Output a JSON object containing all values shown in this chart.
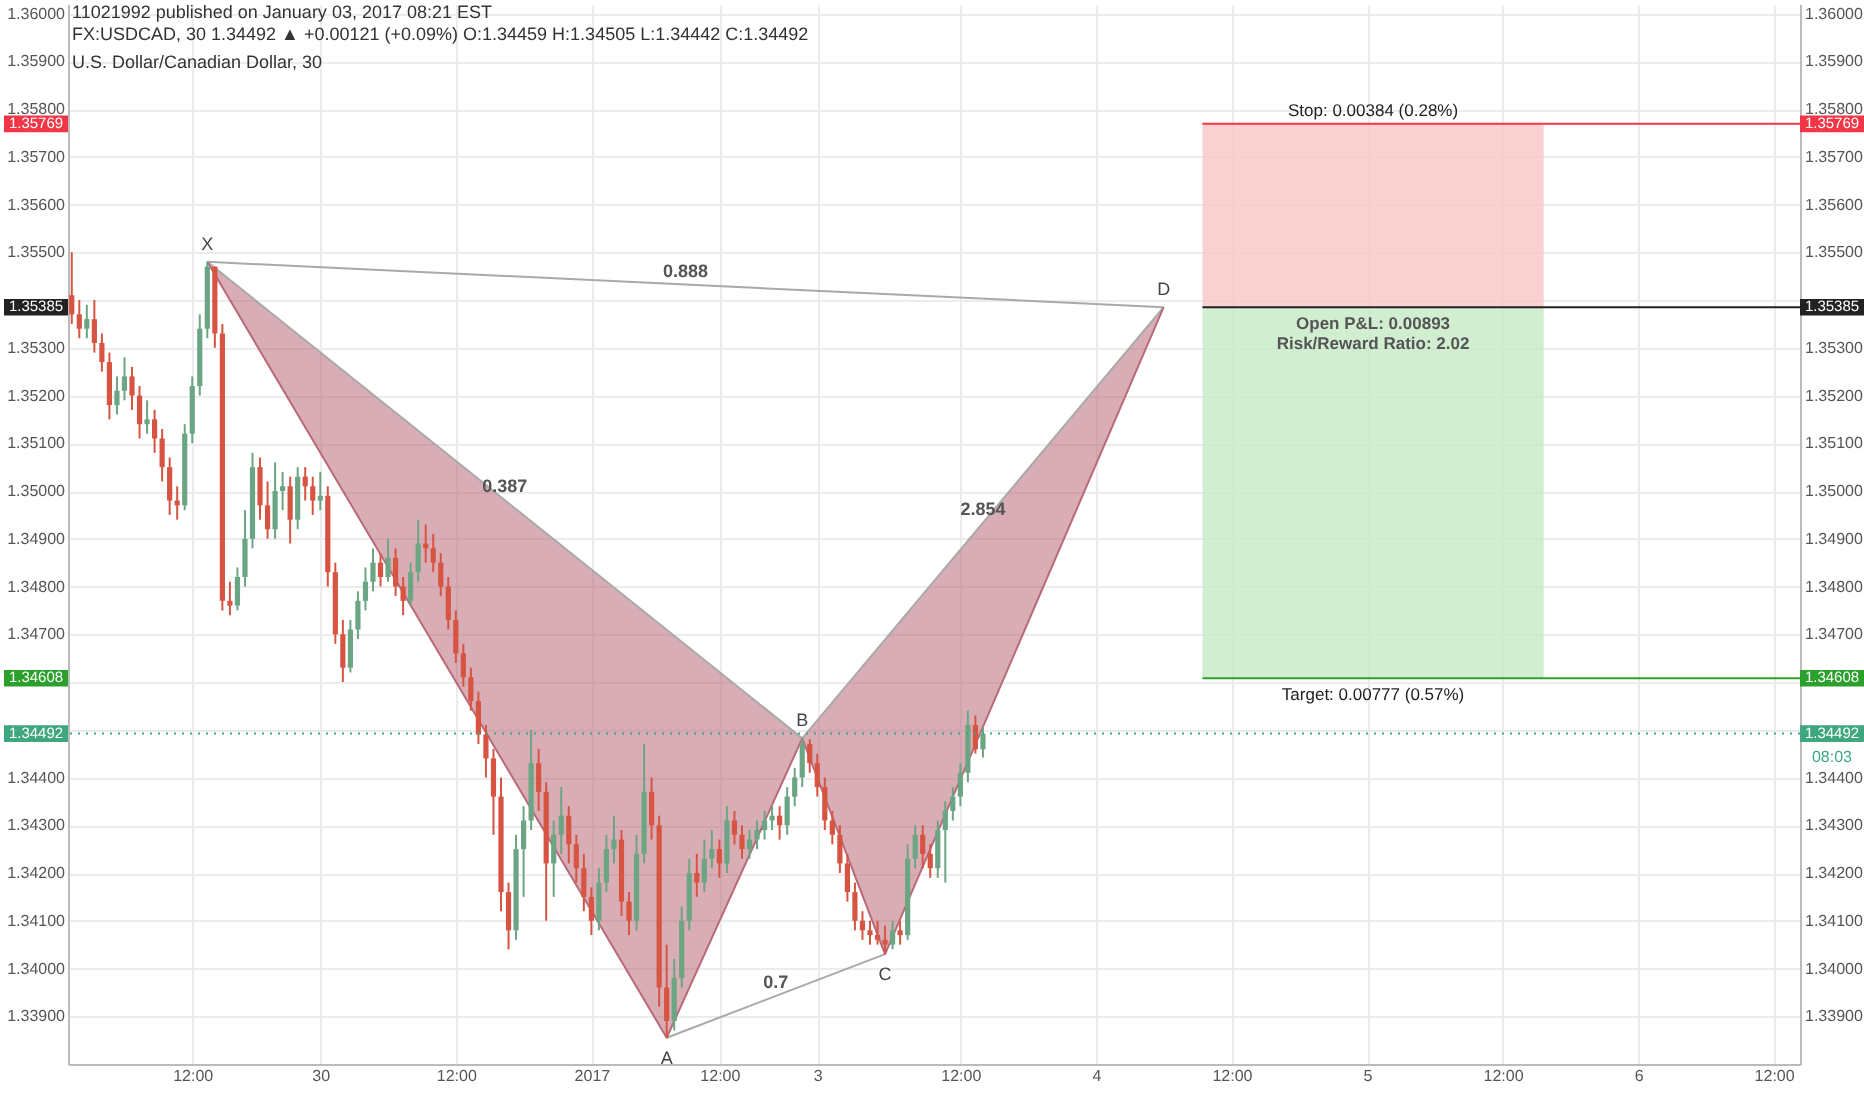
{
  "chart_data": {
    "type": "candlestick",
    "title": "U.S. Dollar/Canadian Dollar, 30",
    "annotations": [
      "11021992 published on January 03, 2017 08:21 EST",
      "FX:USDCAD, 30  1.34492 ▲ +0.00121 (+0.09%)  O:1.34459  H:1.34505  L:1.34442  C:1.34492",
      "08:03",
      {
        "text": "X",
        "y": 1.3548
      },
      {
        "text": "A",
        "y": 1.33855
      },
      {
        "text": "B",
        "y": 1.34482
      },
      {
        "text": "C",
        "y": 1.3403
      },
      {
        "text": "D",
        "y": 1.35385
      },
      "0.888",
      "0.387",
      "2.854",
      "0.7",
      "Open P&L: 0.00893",
      "Risk/Reward Ratio: 2.02"
    ],
    "categories": [
      null,
      null,
      null,
      null,
      null,
      null,
      null,
      null,
      null,
      null,
      null,
      null,
      null,
      null,
      null,
      null,
      "12:00",
      null,
      null,
      null,
      null,
      null,
      null,
      null,
      null,
      null,
      null,
      null,
      null,
      null,
      null,
      null,
      null,
      "30",
      null,
      null,
      null,
      null,
      null,
      null,
      null,
      null,
      null,
      null,
      null,
      null,
      null,
      null,
      null,
      null,
      null,
      "12:00",
      null,
      null,
      null,
      null,
      null,
      null,
      null,
      null,
      null,
      null,
      null,
      null,
      null,
      null,
      null,
      null,
      null,
      "2017",
      null,
      null,
      null,
      null,
      null,
      null,
      null,
      null,
      null,
      null,
      null,
      null,
      null,
      null,
      null,
      null,
      "12:00",
      null,
      null,
      null,
      null,
      null,
      null,
      null,
      null,
      null,
      null,
      null,
      null,
      "3",
      null,
      null,
      null,
      null,
      null,
      null,
      null,
      null,
      null,
      null,
      null,
      null,
      null,
      null,
      null,
      null,
      null,
      null,
      "12:00",
      null,
      null,
      null,
      null,
      null,
      null,
      null,
      null,
      null,
      null,
      null,
      null,
      null,
      null,
      null,
      null,
      null,
      "4",
      null,
      null,
      null,
      null,
      null,
      null,
      null,
      null,
      null,
      null,
      null,
      null,
      null,
      null,
      null,
      null,
      null,
      "12:00",
      null,
      null,
      null,
      null,
      null,
      null,
      null,
      null,
      null,
      null,
      null,
      null,
      null,
      null,
      null,
      null,
      null,
      "5",
      null,
      null,
      null,
      null,
      null,
      null,
      null,
      null,
      null,
      null,
      null,
      null,
      null,
      null,
      null,
      null,
      null,
      "12:00",
      null,
      null,
      null,
      null,
      null,
      null,
      null,
      null,
      null,
      null,
      null,
      null,
      null,
      null,
      null,
      null,
      null,
      "6",
      null,
      null,
      null,
      null,
      null,
      null,
      null,
      null,
      null,
      null,
      null,
      null,
      null,
      null,
      null,
      null,
      null,
      "12:00",
      null,
      null,
      null
    ],
    "ohlc": [
      [
        1.3541,
        1.355,
        1.3535,
        1.3537
      ],
      [
        1.3537,
        1.354,
        1.3532,
        1.3534
      ],
      [
        1.3534,
        1.3539,
        1.3532,
        1.3536
      ],
      [
        1.3536,
        1.354,
        1.3529,
        1.3531
      ],
      [
        1.3531,
        1.3533,
        1.3525,
        1.3527
      ],
      [
        1.3527,
        1.3529,
        1.3515,
        1.3518
      ],
      [
        1.3518,
        1.3524,
        1.3516,
        1.3521
      ],
      [
        1.3521,
        1.3528,
        1.3519,
        1.3524
      ],
      [
        1.3524,
        1.3526,
        1.3517,
        1.352
      ],
      [
        1.352,
        1.3522,
        1.3511,
        1.3514
      ],
      [
        1.3514,
        1.3519,
        1.3512,
        1.3515
      ],
      [
        1.3515,
        1.3517,
        1.3508,
        1.3511
      ],
      [
        1.3511,
        1.3513,
        1.3502,
        1.3505
      ],
      [
        1.3505,
        1.3507,
        1.3495,
        1.3498
      ],
      [
        1.3498,
        1.3501,
        1.3494,
        1.3497
      ],
      [
        1.3497,
        1.3514,
        1.3496,
        1.3512
      ],
      [
        1.3512,
        1.3524,
        1.351,
        1.3522
      ],
      [
        1.3522,
        1.3537,
        1.352,
        1.3534
      ],
      [
        1.3534,
        1.3548,
        1.3532,
        1.3547
      ],
      [
        1.3547,
        1.3547,
        1.353,
        1.3533
      ],
      [
        1.3533,
        1.3535,
        1.3475,
        1.3477
      ],
      [
        1.3477,
        1.3481,
        1.3474,
        1.3476
      ],
      [
        1.3476,
        1.3484,
        1.3475,
        1.3482
      ],
      [
        1.3482,
        1.3496,
        1.348,
        1.349
      ],
      [
        1.349,
        1.3508,
        1.3488,
        1.3505
      ],
      [
        1.3505,
        1.3507,
        1.3494,
        1.3497
      ],
      [
        1.3497,
        1.3502,
        1.349,
        1.3492
      ],
      [
        1.3492,
        1.3506,
        1.349,
        1.35
      ],
      [
        1.35,
        1.3504,
        1.3496,
        1.3501
      ],
      [
        1.3501,
        1.3503,
        1.3489,
        1.3494
      ],
      [
        1.3494,
        1.3505,
        1.3492,
        1.3503
      ],
      [
        1.3503,
        1.3505,
        1.3498,
        1.3501
      ],
      [
        1.3501,
        1.3503,
        1.3495,
        1.3498
      ],
      [
        1.3498,
        1.3504,
        1.3496,
        1.3499
      ],
      [
        1.3499,
        1.3501,
        1.348,
        1.3483
      ],
      [
        1.3483,
        1.3485,
        1.3468,
        1.347
      ],
      [
        1.347,
        1.3473,
        1.346,
        1.3463
      ],
      [
        1.3463,
        1.3473,
        1.3462,
        1.3471
      ],
      [
        1.3471,
        1.3479,
        1.3469,
        1.3477
      ],
      [
        1.3477,
        1.3484,
        1.3475,
        1.3481
      ],
      [
        1.3481,
        1.3488,
        1.3479,
        1.3485
      ],
      [
        1.3485,
        1.3487,
        1.348,
        1.3482
      ],
      [
        1.3482,
        1.349,
        1.3481,
        1.3486
      ],
      [
        1.3486,
        1.3488,
        1.3478,
        1.348
      ],
      [
        1.348,
        1.3482,
        1.3474,
        1.3477
      ],
      [
        1.3477,
        1.3485,
        1.3476,
        1.3483
      ],
      [
        1.3483,
        1.3494,
        1.3481,
        1.3489
      ],
      [
        1.3489,
        1.3493,
        1.3485,
        1.3488
      ],
      [
        1.3488,
        1.3491,
        1.3483,
        1.3485
      ],
      [
        1.3485,
        1.3487,
        1.3478,
        1.348
      ],
      [
        1.348,
        1.3482,
        1.3471,
        1.3473
      ],
      [
        1.3473,
        1.3475,
        1.3464,
        1.3466
      ],
      [
        1.3466,
        1.3468,
        1.3459,
        1.3461
      ],
      [
        1.3461,
        1.3463,
        1.3454,
        1.3456
      ],
      [
        1.3456,
        1.3458,
        1.3447,
        1.3449
      ],
      [
        1.3449,
        1.3451,
        1.344,
        1.3444
      ],
      [
        1.3444,
        1.3446,
        1.3428,
        1.3436
      ],
      [
        1.3436,
        1.344,
        1.3412,
        1.3416
      ],
      [
        1.3416,
        1.3418,
        1.3404,
        1.3408
      ],
      [
        1.3408,
        1.3428,
        1.3406,
        1.3425
      ],
      [
        1.3425,
        1.3434,
        1.3415,
        1.3431
      ],
      [
        1.3431,
        1.345,
        1.3429,
        1.3443
      ],
      [
        1.3443,
        1.3446,
        1.3433,
        1.3437
      ],
      [
        1.3437,
        1.3439,
        1.341,
        1.3422
      ],
      [
        1.3422,
        1.3431,
        1.3415,
        1.3428
      ],
      [
        1.3428,
        1.3438,
        1.3424,
        1.3432
      ],
      [
        1.3432,
        1.3434,
        1.3422,
        1.3426
      ],
      [
        1.3426,
        1.3428,
        1.3418,
        1.3421
      ],
      [
        1.3421,
        1.3424,
        1.3412,
        1.3415
      ],
      [
        1.3415,
        1.3417,
        1.3407,
        1.341
      ],
      [
        1.341,
        1.3421,
        1.3408,
        1.3418
      ],
      [
        1.3418,
        1.3428,
        1.3416,
        1.3425
      ],
      [
        1.3425,
        1.3432,
        1.3422,
        1.3427
      ],
      [
        1.3427,
        1.3429,
        1.3411,
        1.3414
      ],
      [
        1.3414,
        1.3416,
        1.3407,
        1.341
      ],
      [
        1.341,
        1.3428,
        1.3408,
        1.3424
      ],
      [
        1.3424,
        1.3447,
        1.3422,
        1.3437
      ],
      [
        1.3437,
        1.344,
        1.3427,
        1.343
      ],
      [
        1.343,
        1.3432,
        1.3392,
        1.3396
      ],
      [
        1.3396,
        1.3405,
        1.33855,
        1.3389
      ],
      [
        1.3389,
        1.3402,
        1.3387,
        1.3398
      ],
      [
        1.3398,
        1.3413,
        1.3396,
        1.341
      ],
      [
        1.341,
        1.3423,
        1.3408,
        1.342
      ],
      [
        1.342,
        1.3424,
        1.3415,
        1.3418
      ],
      [
        1.3418,
        1.3427,
        1.3416,
        1.3423
      ],
      [
        1.3423,
        1.3429,
        1.3421,
        1.3425
      ],
      [
        1.3425,
        1.3427,
        1.3419,
        1.3422
      ],
      [
        1.3422,
        1.3434,
        1.342,
        1.3431
      ],
      [
        1.3431,
        1.3433,
        1.3426,
        1.3428
      ],
      [
        1.3428,
        1.343,
        1.3423,
        1.3425
      ],
      [
        1.3425,
        1.3429,
        1.3423,
        1.3427
      ],
      [
        1.3427,
        1.3431,
        1.3425,
        1.3429
      ],
      [
        1.3429,
        1.3433,
        1.3427,
        1.3431
      ],
      [
        1.3431,
        1.3434,
        1.3429,
        1.3432
      ],
      [
        1.3432,
        1.3434,
        1.3427,
        1.343
      ],
      [
        1.343,
        1.3438,
        1.3428,
        1.3436
      ],
      [
        1.3436,
        1.3442,
        1.3434,
        1.344
      ],
      [
        1.344,
        1.34482,
        1.3438,
        1.3447
      ],
      [
        1.3447,
        1.3448,
        1.3441,
        1.3443
      ],
      [
        1.3443,
        1.3445,
        1.3436,
        1.3438
      ],
      [
        1.3438,
        1.344,
        1.3429,
        1.3431
      ],
      [
        1.3431,
        1.3433,
        1.3426,
        1.3428
      ],
      [
        1.3428,
        1.343,
        1.342,
        1.3422
      ],
      [
        1.3422,
        1.3424,
        1.3414,
        1.3416
      ],
      [
        1.3416,
        1.3418,
        1.3408,
        1.341
      ],
      [
        1.341,
        1.3412,
        1.3406,
        1.3408
      ],
      [
        1.3408,
        1.341,
        1.3405,
        1.3407
      ],
      [
        1.3407,
        1.341,
        1.3405,
        1.3406
      ],
      [
        1.3406,
        1.3409,
        1.3403,
        1.3405
      ],
      [
        1.3405,
        1.341,
        1.3404,
        1.3408
      ],
      [
        1.3408,
        1.341,
        1.3405,
        1.3407
      ],
      [
        1.3407,
        1.3426,
        1.3406,
        1.3423
      ],
      [
        1.3423,
        1.343,
        1.3421,
        1.3428
      ],
      [
        1.3428,
        1.343,
        1.3421,
        1.3424
      ],
      [
        1.3424,
        1.3426,
        1.3419,
        1.3421
      ],
      [
        1.3421,
        1.3431,
        1.3419,
        1.3429
      ],
      [
        1.3429,
        1.3435,
        1.3418,
        1.3433
      ],
      [
        1.3433,
        1.3438,
        1.3431,
        1.3436
      ],
      [
        1.3436,
        1.3443,
        1.3434,
        1.3441
      ],
      [
        1.3441,
        1.3454,
        1.3439,
        1.3451
      ],
      [
        1.3451,
        1.3453,
        1.3445,
        1.34459
      ],
      [
        1.34459,
        1.34505,
        1.34442,
        1.34492
      ],
      null,
      null,
      null,
      null,
      null,
      null,
      null,
      null,
      null,
      null,
      null,
      null,
      null,
      null,
      null,
      null,
      null,
      null,
      null,
      null,
      null,
      null,
      null,
      null,
      null,
      null,
      null,
      null,
      null,
      null,
      null,
      null,
      null,
      null,
      null,
      null,
      null,
      null,
      null,
      null,
      null,
      null,
      null,
      null,
      null,
      null,
      null,
      null,
      null,
      null,
      null,
      null,
      null,
      null,
      null,
      null,
      null,
      null,
      null,
      null,
      null,
      null,
      null,
      null,
      null,
      null,
      null,
      null,
      null,
      null,
      null,
      null,
      null,
      null,
      null,
      null,
      null,
      null,
      null,
      null,
      null,
      null,
      null,
      null,
      null,
      null,
      null,
      null,
      null,
      null,
      null,
      null,
      null,
      null,
      null,
      null,
      null,
      null,
      null,
      null,
      null,
      null,
      null,
      null,
      null,
      null,
      null,
      null
    ],
    "colors": [
      "#d75442",
      "#d75442",
      "#6ba583",
      "#d75442",
      "#d75442",
      "#d75442",
      "#6ba583",
      "#6ba583",
      "#d75442",
      "#d75442",
      "#6ba583",
      "#d75442",
      "#d75442",
      "#d75442",
      "#d75442",
      "#6ba583",
      "#6ba583",
      "#6ba583",
      "#6ba583",
      "#d75442",
      "#d75442",
      "#d75442",
      "#6ba583",
      "#6ba583",
      "#6ba583",
      "#d75442",
      "#d75442",
      "#6ba583",
      "#6ba583",
      "#d75442",
      "#6ba583",
      "#d75442",
      "#d75442",
      "#6ba583",
      "#d75442",
      "#d75442",
      "#d75442",
      "#6ba583",
      "#6ba583",
      "#6ba583",
      "#6ba583",
      "#d75442",
      "#6ba583",
      "#d75442",
      "#d75442",
      "#6ba583",
      "#6ba583",
      "#d75442",
      "#d75442",
      "#d75442",
      "#d75442",
      "#d75442",
      "#d75442",
      "#d75442",
      "#d75442",
      "#d75442",
      "#d75442",
      "#d75442",
      "#d75442",
      "#6ba583",
      "#6ba583",
      "#6ba583",
      "#d75442",
      "#d75442",
      "#6ba583",
      "#6ba583",
      "#d75442",
      "#d75442",
      "#d75442",
      "#d75442",
      "#6ba583",
      "#6ba583",
      "#6ba583",
      "#d75442",
      "#d75442",
      "#6ba583",
      "#6ba583",
      "#d75442",
      "#d75442",
      "#d75442",
      "#6ba583",
      "#6ba583",
      "#6ba583",
      "#d75442",
      "#6ba583",
      "#6ba583",
      "#d75442",
      "#6ba583",
      "#d75442",
      "#d75442",
      "#6ba583",
      "#6ba583",
      "#6ba583",
      "#6ba583",
      "#d75442",
      "#6ba583",
      "#6ba583",
      "#6ba583",
      "#d75442",
      "#d75442",
      "#d75442",
      "#d75442",
      "#d75442",
      "#d75442",
      "#d75442",
      "#d75442",
      "#d75442",
      "#d75442",
      "#d75442",
      "#6ba583",
      "#d75442",
      "#6ba583",
      "#6ba583",
      "#d75442",
      "#d75442",
      "#6ba583",
      "#6ba583",
      "#6ba583",
      "#6ba583",
      "#6ba583",
      "#d75442",
      "#6ba583",
      null,
      null,
      null,
      null,
      null,
      null,
      null,
      null,
      null,
      null,
      null,
      null,
      null,
      null,
      null,
      null,
      null,
      null,
      null,
      null,
      null,
      null,
      null,
      null,
      null,
      null,
      null,
      null,
      null,
      null,
      null,
      null,
      null,
      null,
      null,
      null,
      null,
      null,
      null,
      null,
      null,
      null,
      null,
      null,
      null,
      null,
      null,
      null,
      null,
      null,
      null,
      null,
      null,
      null,
      null,
      null,
      null,
      null,
      null,
      null,
      null,
      null,
      null,
      null,
      null,
      null,
      null,
      null,
      null,
      null,
      null,
      null,
      null,
      null,
      null,
      null,
      null,
      null,
      null,
      null,
      null,
      null,
      null,
      null,
      null,
      null,
      null,
      null,
      null,
      null,
      null,
      null,
      null,
      null,
      null,
      null,
      null,
      null,
      null,
      null,
      null,
      null,
      null,
      null,
      null,
      null,
      null,
      null
    ],
    "series": [
      {
        "type": "line",
        "color": "#b96a78",
        "values": [
          null,
          null,
          null,
          null,
          null,
          null,
          null,
          null,
          null,
          null,
          null,
          null,
          null,
          null,
          null,
          null,
          null,
          null,
          1.3548,
          null,
          null,
          null,
          null,
          null,
          null,
          null,
          null,
          null,
          null,
          null,
          null,
          null,
          null,
          null,
          null,
          null,
          null,
          null,
          null,
          null,
          null,
          null,
          null,
          null,
          null,
          null,
          null,
          null,
          null,
          null,
          null,
          null,
          null,
          null,
          null,
          null,
          null,
          null,
          null,
          null,
          null,
          null,
          null,
          null,
          null,
          null,
          null,
          null,
          null,
          null,
          null,
          null,
          null,
          null,
          null,
          null,
          null,
          null,
          null,
          1.33855,
          null,
          null,
          null,
          null,
          null,
          null,
          null,
          null,
          null,
          null,
          null,
          null,
          null,
          null,
          null,
          null,
          null,
          1.34482,
          null,
          null,
          null,
          null,
          null,
          null,
          null,
          null,
          null,
          null,
          1.3403,
          null,
          null,
          null,
          null,
          null,
          null,
          null,
          null,
          null,
          null,
          null,
          null,
          null,
          null,
          null,
          null,
          null,
          null,
          null,
          null,
          null,
          null,
          null,
          null,
          null,
          null,
          null,
          null,
          null,
          null,
          null,
          null,
          null,
          null,
          null,
          null,
          1.35385,
          null,
          null,
          null,
          null,
          null,
          null,
          null,
          null,
          null,
          null,
          null,
          null,
          null,
          null,
          null,
          null,
          null,
          null,
          null,
          null,
          null,
          null,
          null,
          null,
          null,
          null,
          null,
          null,
          null,
          null,
          null,
          null,
          null,
          null,
          null,
          null,
          null,
          null,
          null,
          null,
          null,
          null,
          null,
          null,
          null,
          null,
          null,
          null,
          null,
          null,
          null,
          null,
          null,
          null,
          null,
          null,
          null,
          null,
          null,
          null,
          null,
          null,
          null,
          null,
          null,
          null,
          null,
          null,
          null,
          null,
          null,
          null,
          null,
          null,
          null,
          null,
          null,
          null,
          null,
          null,
          null,
          null,
          null,
          null
        ]
      }
    ],
    "ylim": [
      1.338,
      1.3602
    ],
    "yticks": [
      {
        "value": 1.339,
        "label": "1.33900"
      },
      {
        "value": 1.34,
        "label": "1.34000"
      },
      {
        "value": 1.341,
        "label": "1.34100"
      },
      {
        "value": 1.342,
        "label": "1.34200"
      },
      {
        "value": 1.343,
        "label": "1.34300"
      },
      {
        "value": 1.344,
        "label": "1.34400"
      },
      {
        "value": 1.345,
        "label": null
      },
      {
        "value": 1.346,
        "label": null
      },
      {
        "value": 1.347,
        "label": "1.34700"
      },
      {
        "value": 1.348,
        "label": "1.34800"
      },
      {
        "value": 1.349,
        "label": "1.34900"
      },
      {
        "value": 1.35,
        "label": "1.35000"
      },
      {
        "value": 1.351,
        "label": "1.35100"
      },
      {
        "value": 1.352,
        "label": "1.35200"
      },
      {
        "value": 1.353,
        "label": "1.35300"
      },
      {
        "value": 1.354,
        "label": null
      },
      {
        "value": 1.355,
        "label": "1.35500"
      },
      {
        "value": 1.356,
        "label": "1.35600"
      },
      {
        "value": 1.357,
        "label": "1.35700"
      },
      {
        "value": 1.358,
        "label": "1.35800"
      },
      {
        "value": 1.359,
        "label": "1.35900"
      },
      {
        "value": 1.36,
        "label": "1.36000"
      }
    ],
    "y2lim": [
      1.338,
      1.3602
    ],
    "y2ticks": [
      {
        "value": 1.339,
        "label": "1.33900"
      },
      {
        "value": 1.34,
        "label": "1.34000"
      },
      {
        "value": 1.341,
        "label": "1.34100"
      },
      {
        "value": 1.342,
        "label": "1.34200"
      },
      {
        "value": 1.343,
        "label": "1.34300"
      },
      {
        "value": 1.344,
        "label": "1.34400"
      },
      {
        "value": 1.345,
        "label": null
      },
      {
        "value": 1.346,
        "label": null
      },
      {
        "value": 1.347,
        "label": "1.34700"
      },
      {
        "value": 1.348,
        "label": "1.34800"
      },
      {
        "value": 1.349,
        "label": "1.34900"
      },
      {
        "value": 1.35,
        "label": "1.35000"
      },
      {
        "value": 1.351,
        "label": "1.35100"
      },
      {
        "value": 1.352,
        "label": "1.35200"
      },
      {
        "value": 1.353,
        "label": "1.35300"
      },
      {
        "value": 1.354,
        "label": null
      },
      {
        "value": 1.355,
        "label": "1.35500"
      },
      {
        "value": 1.356,
        "label": "1.35600"
      },
      {
        "value": 1.357,
        "label": "1.35700"
      },
      {
        "value": 1.358,
        "label": "1.35800"
      },
      {
        "value": 1.359,
        "label": "1.35900"
      },
      {
        "value": 1.36,
        "label": "1.36000"
      }
    ],
    "ref_lines": [
      {
        "axis": "y",
        "value": 1.34492,
        "label": "1.34492",
        "color": "#3fa77f",
        "line_style": "dotted"
      },
      {
        "axis": "y",
        "value": 1.35769,
        "label": "1.35769",
        "color": "#f23645"
      },
      {
        "axis": "y",
        "value": 1.35385,
        "label": "1.35385",
        "color": "#222222"
      },
      {
        "axis": "y",
        "value": 1.34608,
        "label": "1.34608",
        "color": "#2ca02c"
      }
    ],
    "bands": [
      {
        "axis": "y",
        "from": 1.35385,
        "to": 1.35769,
        "label": "Stop: 0.00384 (0.28%)",
        "color": "#f9c9c9"
      },
      {
        "axis": "y",
        "from": 1.35385,
        "to": 1.34608,
        "label": "Target: 0.00777 (0.57%)",
        "color": "#c9ebc9"
      }
    ],
    "grid": true
  }
}
